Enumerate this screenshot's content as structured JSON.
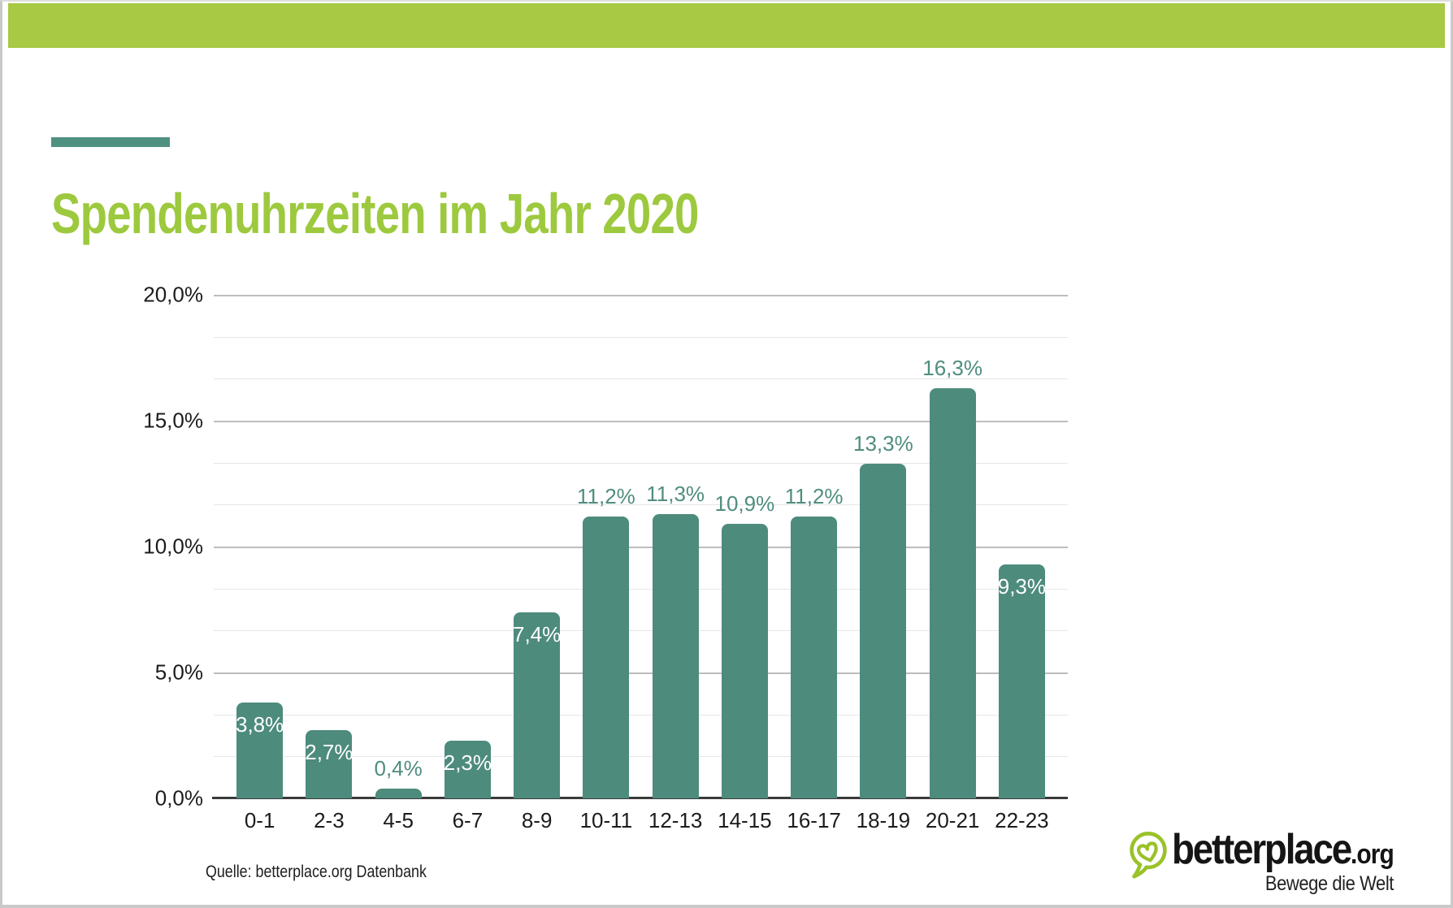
{
  "page": {
    "title": "Spendenuhrzeiten im Jahr 2020",
    "source_note": "Quelle: betterplace.org Datenbank"
  },
  "branding": {
    "logo_text": "betterplace",
    "logo_suffix": ".org",
    "logo_tagline": "Bewege die Welt",
    "logo_icon": "heart-pin-icon",
    "logo_green": "#9ac229"
  },
  "colors": {
    "top_bar": "#a7c944",
    "title": "#9dc93e",
    "accent_dash": "#4f9181",
    "bar": "#4d8b7d",
    "value_label_inside": "#ffffff",
    "value_label_outside": "#4f8d7f"
  },
  "chart_data": {
    "type": "bar",
    "title": "Spendenuhrzeiten im Jahr 2020",
    "categories": [
      "0-1",
      "2-3",
      "4-5",
      "6-7",
      "8-9",
      "10-11",
      "12-13",
      "14-15",
      "16-17",
      "18-19",
      "20-21",
      "22-23"
    ],
    "values": [
      3.8,
      2.7,
      0.4,
      2.3,
      7.4,
      11.2,
      11.3,
      10.9,
      11.2,
      13.3,
      16.3,
      9.3
    ],
    "value_labels": [
      "3,8%",
      "2,7%",
      "0,4%",
      "2,3%",
      "7,4%",
      "11,2%",
      "11,3%",
      "10,9%",
      "11,2%",
      "13,3%",
      "16,3%",
      "9,3%"
    ],
    "label_placement": [
      "inside",
      "inside",
      "outside",
      "inside",
      "inside",
      "outside",
      "outside",
      "outside",
      "outside",
      "outside",
      "outside",
      "inside"
    ],
    "xlabel": "",
    "ylabel": "",
    "y_ticks": [
      "0,0%",
      "5,0%",
      "10,0%",
      "15,0%",
      "20,0%"
    ],
    "y_tick_step_pct": 5,
    "y_gridline_step_pct": 1.6667,
    "ylim": [
      0,
      20
    ],
    "grid": "on",
    "legend": "none"
  }
}
